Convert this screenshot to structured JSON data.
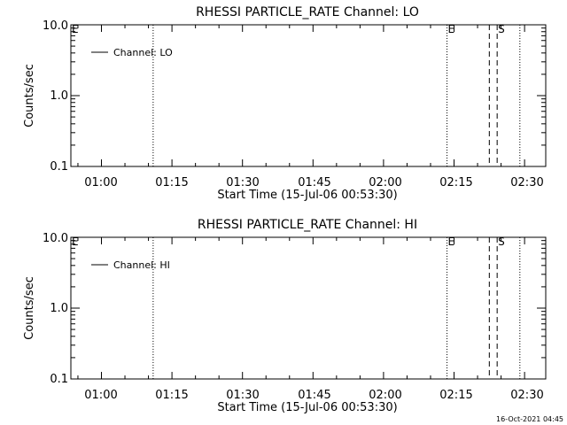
{
  "timestamp": "16-Oct-2021 04:45",
  "charts": {
    "common": {
      "type": "line",
      "xlabel": "Start Time (15-Jul-06 00:53:30)",
      "ylabel": "Counts/sec",
      "scale": "log",
      "y_ticks": [
        "10.0",
        "1.0",
        "0.1"
      ],
      "ylim": [
        0.1,
        10.0
      ],
      "xlim": [
        "00:53:30",
        "02:34:30"
      ],
      "x_ticks": [
        "01:00",
        "01:15",
        "01:30",
        "01:45",
        "02:00",
        "02:15",
        "02:30"
      ],
      "legend_placement": "top-left"
    }
  },
  "chart_data": [
    {
      "type": "line",
      "title": "RHESSI PARTICLE_RATE Channel: LO",
      "xlabel": "Start Time (15-Jul-06 00:53:30)",
      "ylabel": "Counts/sec",
      "yscale": "log",
      "ylim": [
        0.1,
        10.0
      ],
      "xlim": [
        "00:53:30",
        "02:34:30"
      ],
      "legend": "Channel: LO",
      "legend_placement": "top-left",
      "series": [
        {
          "name": "Channel: LO",
          "values": []
        }
      ],
      "markers": [
        {
          "x": "00:53:30",
          "style": "dotted",
          "label": "E"
        },
        {
          "x": "01:11:00",
          "style": "dotted",
          "label": ""
        },
        {
          "x": "02:13:30",
          "style": "dotted",
          "label": "E"
        },
        {
          "x": "02:22:30",
          "style": "dashed",
          "label": ""
        },
        {
          "x": "02:24:10",
          "style": "dashed",
          "label": "S"
        },
        {
          "x": "02:29:00",
          "style": "dotted",
          "label": ""
        }
      ]
    },
    {
      "type": "line",
      "title": "RHESSI PARTICLE_RATE Channel: HI",
      "xlabel": "Start Time (15-Jul-06 00:53:30)",
      "ylabel": "Counts/sec",
      "yscale": "log",
      "ylim": [
        0.1,
        10.0
      ],
      "xlim": [
        "00:53:30",
        "02:34:30"
      ],
      "legend": "Channel: HI",
      "legend_placement": "top-left",
      "series": [
        {
          "name": "Channel: HI",
          "values": []
        }
      ],
      "markers": [
        {
          "x": "00:53:30",
          "style": "dotted",
          "label": "E"
        },
        {
          "x": "01:11:00",
          "style": "dotted",
          "label": ""
        },
        {
          "x": "02:13:30",
          "style": "dotted",
          "label": "E"
        },
        {
          "x": "02:22:30",
          "style": "dashed",
          "label": ""
        },
        {
          "x": "02:24:10",
          "style": "dashed",
          "label": "S"
        },
        {
          "x": "02:29:00",
          "style": "dotted",
          "label": ""
        }
      ]
    }
  ]
}
